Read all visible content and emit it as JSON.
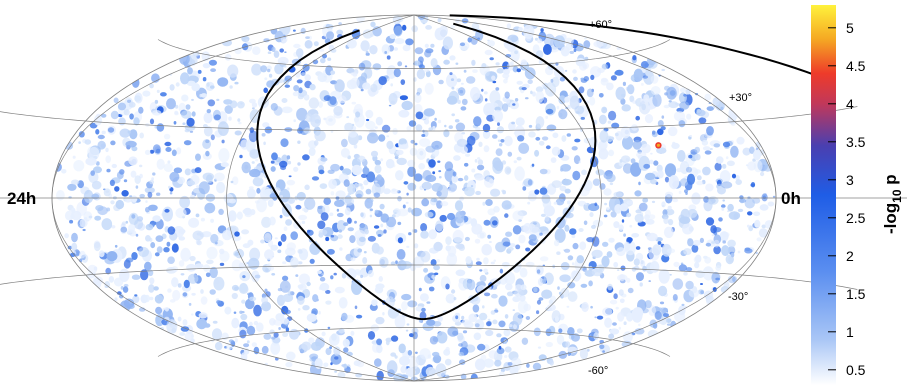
{
  "chart_data": {
    "type": "heatmap",
    "projection": "hammer-aitoff",
    "colors": {
      "background": "#ffffff",
      "grid": "#808080",
      "galactic_plane": "#000000",
      "colorbar_scale": [
        "#ffffff",
        "#a9c6f6",
        "#5a8ef0",
        "#1f5de6",
        "#4a3fb0",
        "#c1385a",
        "#ee3b2a",
        "#f5a823",
        "#fff23c"
      ]
    },
    "ra_labels": {
      "left": "24h",
      "right": "0h"
    },
    "dec_labels": [
      "+60°",
      "+30°",
      "-30°",
      "-60°"
    ],
    "dec_values": [
      60,
      30,
      -30,
      -60
    ],
    "colorbar": {
      "title_main": "-log",
      "title_sub": "10",
      "title_tail": " p",
      "min": 0.3,
      "max": 5.3,
      "ticks": [
        "0.5",
        "1",
        "1.5",
        "2",
        "2.5",
        "3",
        "3.5",
        "4",
        "4.5",
        "5"
      ],
      "tick_values": [
        0.5,
        1,
        1.5,
        2,
        2.5,
        3,
        3.5,
        4,
        4.5,
        5
      ]
    },
    "hotspot": {
      "ra_deg": 96,
      "dec_deg": 22,
      "value": 4.3
    }
  }
}
